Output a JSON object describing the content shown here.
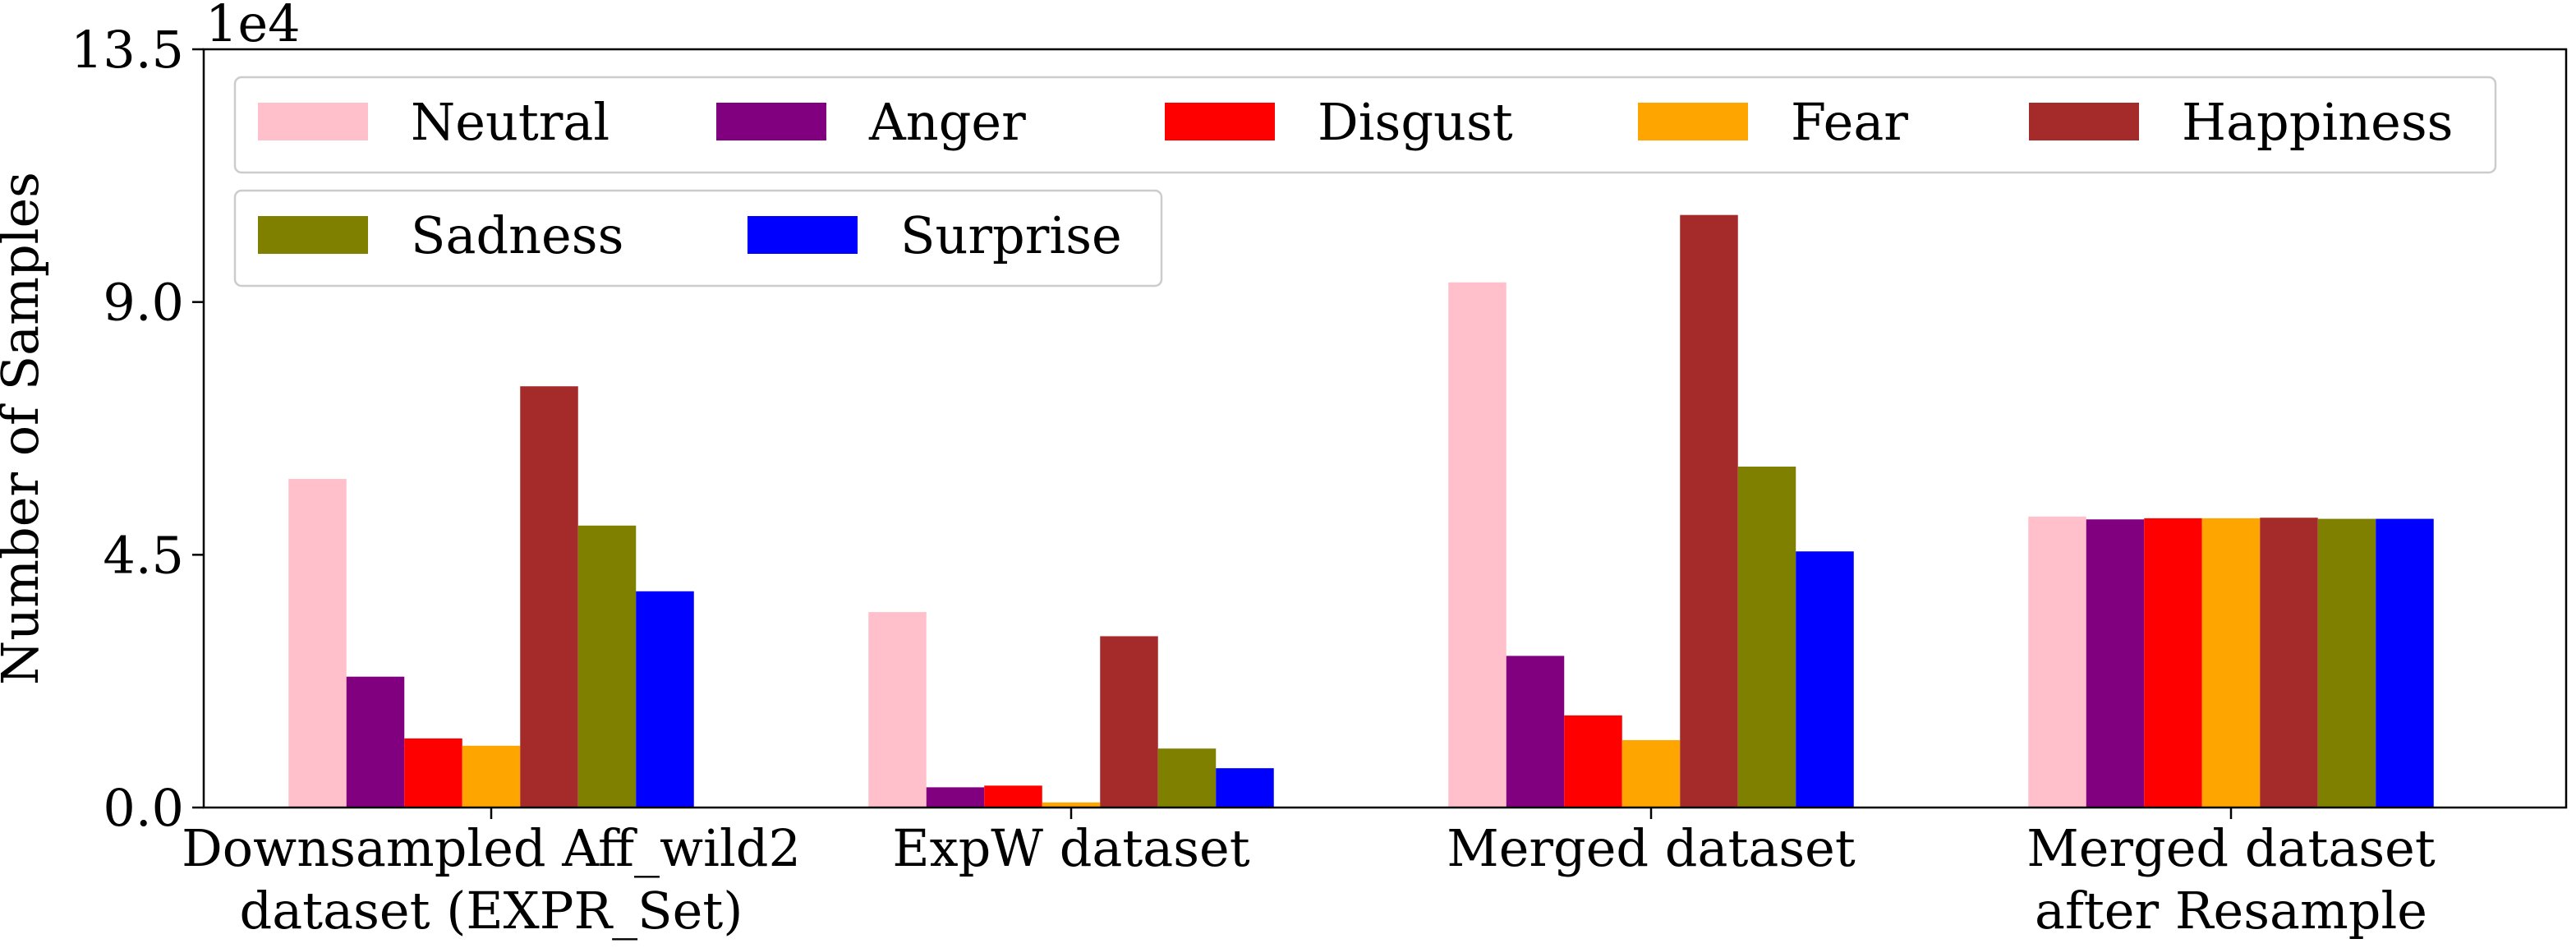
{
  "chart_data": {
    "type": "bar",
    "title": "",
    "xlabel": "",
    "ylabel": "Number of Samples",
    "y_multiplier": "1e4",
    "ylim": [
      0,
      135000
    ],
    "yticks": [
      0,
      45000,
      90000,
      135000
    ],
    "ytick_labels": [
      "0.0",
      "4.5",
      "9.0",
      "13.5"
    ],
    "grid": false,
    "legend_placement": "top-left",
    "categories": [
      [
        "Downsampled Aff_wild2",
        "dataset (EXPR_Set)"
      ],
      [
        "ExpW dataset"
      ],
      [
        "Merged dataset"
      ],
      [
        "Merged dataset",
        "after Resample"
      ]
    ],
    "series": [
      {
        "name": "Neutral",
        "color": "#ffc0cb",
        "values": [
          58500,
          34800,
          93500,
          51800
        ]
      },
      {
        "name": "Anger",
        "color": "#800080",
        "values": [
          23300,
          3600,
          27000,
          51300
        ]
      },
      {
        "name": "Disgust",
        "color": "#ff0000",
        "values": [
          12300,
          3900,
          16400,
          51500
        ]
      },
      {
        "name": "Fear",
        "color": "#ffa500",
        "values": [
          11000,
          900,
          12000,
          51500
        ]
      },
      {
        "name": "Happiness",
        "color": "#a52a2a",
        "values": [
          75000,
          30500,
          105500,
          51600
        ]
      },
      {
        "name": "Sadness",
        "color": "#808000",
        "values": [
          50200,
          10500,
          60700,
          51400
        ]
      },
      {
        "name": "Surprise",
        "color": "#0000ff",
        "values": [
          38500,
          7000,
          45600,
          51400
        ]
      }
    ]
  }
}
